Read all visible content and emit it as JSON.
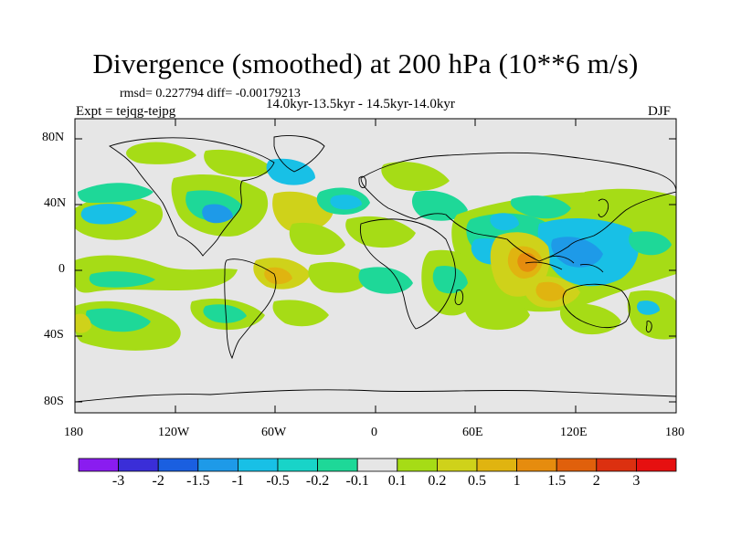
{
  "title": "Divergence (smoothed) at 200 hPa (10**6 m/s)",
  "stats": "rmsd= 0.227794  diff= -0.00179213",
  "period": "14.0kyr-13.5kyr - 14.5kyr-14.0kyr",
  "experiment": "Expt = tejqg-tejpg",
  "season": "DJF",
  "lat_labels": [
    "80N",
    "40N",
    "0",
    "40S",
    "80S"
  ],
  "lon_labels": [
    "180",
    "120W",
    "60W",
    "0",
    "60E",
    "120E",
    "180"
  ],
  "colorbar": {
    "labels": [
      "-3",
      "-2",
      "-1.5",
      "-1",
      "-0.5",
      "-0.2",
      "-0.1",
      "0.1",
      "0.2",
      "0.5",
      "1",
      "1.5",
      "2",
      "3"
    ],
    "colors": [
      "#8a1cf0",
      "#3a2ed8",
      "#1a5fe0",
      "#1e9ae8",
      "#18c0e6",
      "#18d4c8",
      "#1ed898",
      "#e6e6e6",
      "#a6dc16",
      "#cfd21a",
      "#e0b410",
      "#e68c0e",
      "#e0600c",
      "#dc3010",
      "#e61010"
    ]
  },
  "map_colors": {
    "background": "#e6e6e6",
    "pos_weak": "#a6dc16",
    "pos_mid": "#cfd21a",
    "pos_strong": "#e0b410",
    "pos_orange": "#e68c0e",
    "pos_red": "#e0600c",
    "neg_weak": "#1ed898",
    "neg_mid": "#18c0e6",
    "neg_strong": "#1e9ae8"
  }
}
